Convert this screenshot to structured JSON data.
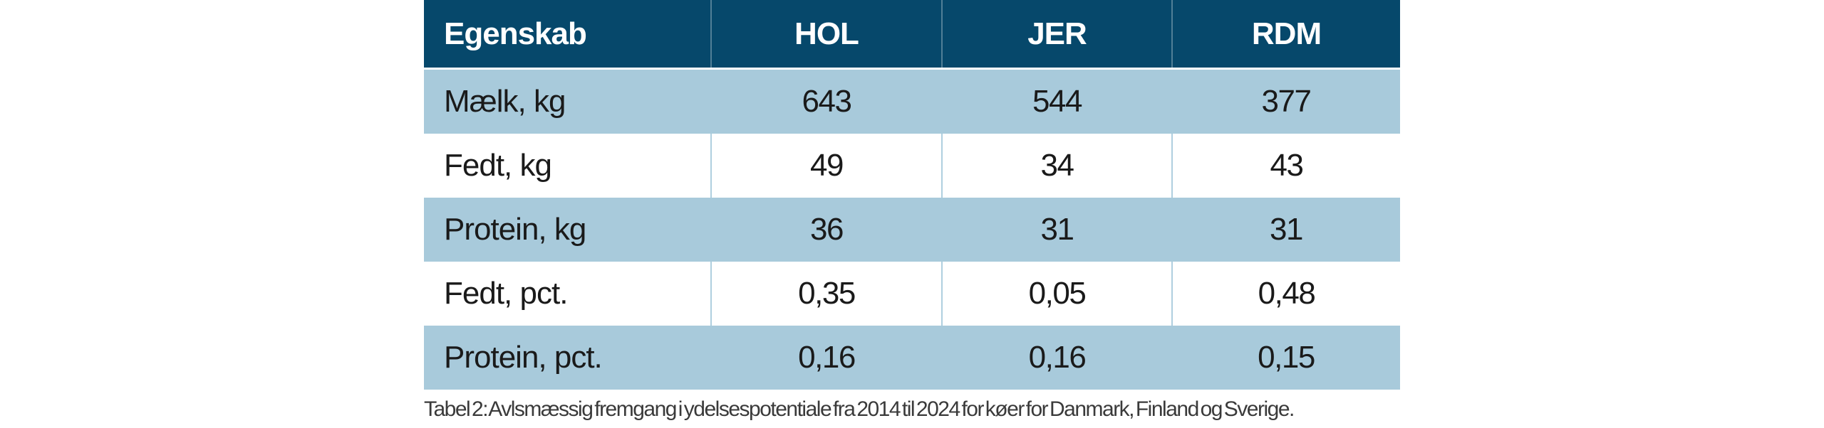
{
  "table": {
    "columns": [
      {
        "label": "Egenskab"
      },
      {
        "label": "HOL"
      },
      {
        "label": "JER"
      },
      {
        "label": "RDM"
      }
    ],
    "rows": [
      {
        "label": "Mælk, kg",
        "values": [
          "643",
          "544",
          "377"
        ]
      },
      {
        "label": "Fedt, kg",
        "values": [
          "49",
          "34",
          "43"
        ]
      },
      {
        "label": "Protein, kg",
        "values": [
          "36",
          "31",
          "31"
        ]
      },
      {
        "label": "Fedt, pct.",
        "values": [
          "0,35",
          "0,05",
          "0,48"
        ]
      },
      {
        "label": "Protein, pct.",
        "values": [
          "0,16",
          "0,16",
          "0,15"
        ]
      }
    ],
    "caption": "Tabel 2: Avlsmæssig fremgang i ydelsespotentiale fra 2014 til 2024 for køer for Danmark, Finland og Sverige."
  },
  "colors": {
    "header_bg": "#06486B",
    "alt_row_bg": "#A8CADB",
    "plain_row_bg": "#FFFFFF",
    "header_text": "#FFFFFF",
    "cell_text": "#1A1A1A",
    "caption_text": "#3A3A3A",
    "divider": "#AFCFDF"
  }
}
